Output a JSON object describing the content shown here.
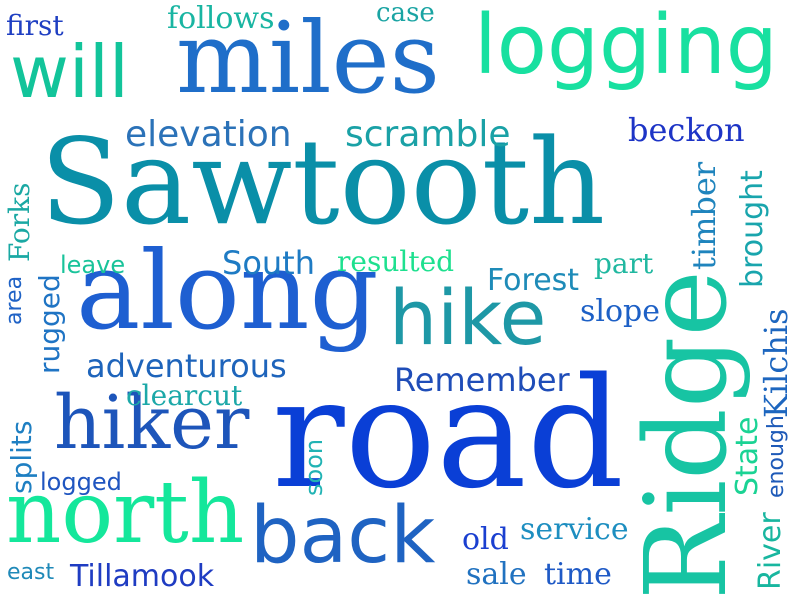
{
  "words": [
    {
      "text": "Sawtooth",
      "color": "#0a8fa8"
    },
    {
      "text": "road",
      "color": "#0a3fd6"
    },
    {
      "text": "Ridge",
      "color": "#17c4a3"
    },
    {
      "text": "along",
      "color": "#1e5fd1"
    },
    {
      "text": "miles",
      "color": "#1f6ec9"
    },
    {
      "text": "logging",
      "color": "#18e0a0"
    },
    {
      "text": "north",
      "color": "#14e79b"
    },
    {
      "text": "back",
      "color": "#1f63c2"
    },
    {
      "text": "will",
      "color": "#12c49a"
    },
    {
      "text": "hike",
      "color": "#1e98a6"
    },
    {
      "text": "hiker",
      "color": "#1d55ba"
    },
    {
      "text": "elevation",
      "color": "#2b72b8"
    },
    {
      "text": "scramble",
      "color": "#1aa1a6"
    },
    {
      "text": "beckon",
      "color": "#1d34c6"
    },
    {
      "text": "timber",
      "color": "#1f84bd"
    },
    {
      "text": "brought",
      "color": "#19a5ad"
    },
    {
      "text": "Forest",
      "color": "#1e8bb8"
    },
    {
      "text": "Remember",
      "color": "#1f4db8"
    },
    {
      "text": "adventurous",
      "color": "#1e64bb"
    },
    {
      "text": "South",
      "color": "#1e7bc4"
    },
    {
      "text": "resulted",
      "color": "#1ee08f"
    },
    {
      "text": "slope",
      "color": "#1d60c6"
    },
    {
      "text": "part",
      "color": "#21b8a0"
    },
    {
      "text": "Kilchis",
      "color": "#1d66bf"
    },
    {
      "text": "State",
      "color": "#1bd394"
    },
    {
      "text": "enough",
      "color": "#1e5ab8"
    },
    {
      "text": "River",
      "color": "#18b69f"
    },
    {
      "text": "service",
      "color": "#1d8ec0"
    },
    {
      "text": "old",
      "color": "#1a3fd0"
    },
    {
      "text": "sale",
      "color": "#2172c0"
    },
    {
      "text": "time",
      "color": "#1f5ac6"
    },
    {
      "text": "Tillamook",
      "color": "#1f3cc2"
    },
    {
      "text": "east",
      "color": "#1f89b8"
    },
    {
      "text": "logged",
      "color": "#1f55c0"
    },
    {
      "text": "splits",
      "color": "#1e7fc2"
    },
    {
      "text": "soon",
      "color": "#21b3b4"
    },
    {
      "text": "clearcut",
      "color": "#1ca8a8"
    },
    {
      "text": "rugged",
      "color": "#1f74c4"
    },
    {
      "text": "area",
      "color": "#1f62c6"
    },
    {
      "text": "Forks",
      "color": "#1aa8a3"
    },
    {
      "text": "leave",
      "color": "#19c39a"
    },
    {
      "text": "first",
      "color": "#1f3fc2"
    },
    {
      "text": "follows",
      "color": "#19b5a2"
    },
    {
      "text": "case",
      "color": "#1aa4a3"
    }
  ]
}
